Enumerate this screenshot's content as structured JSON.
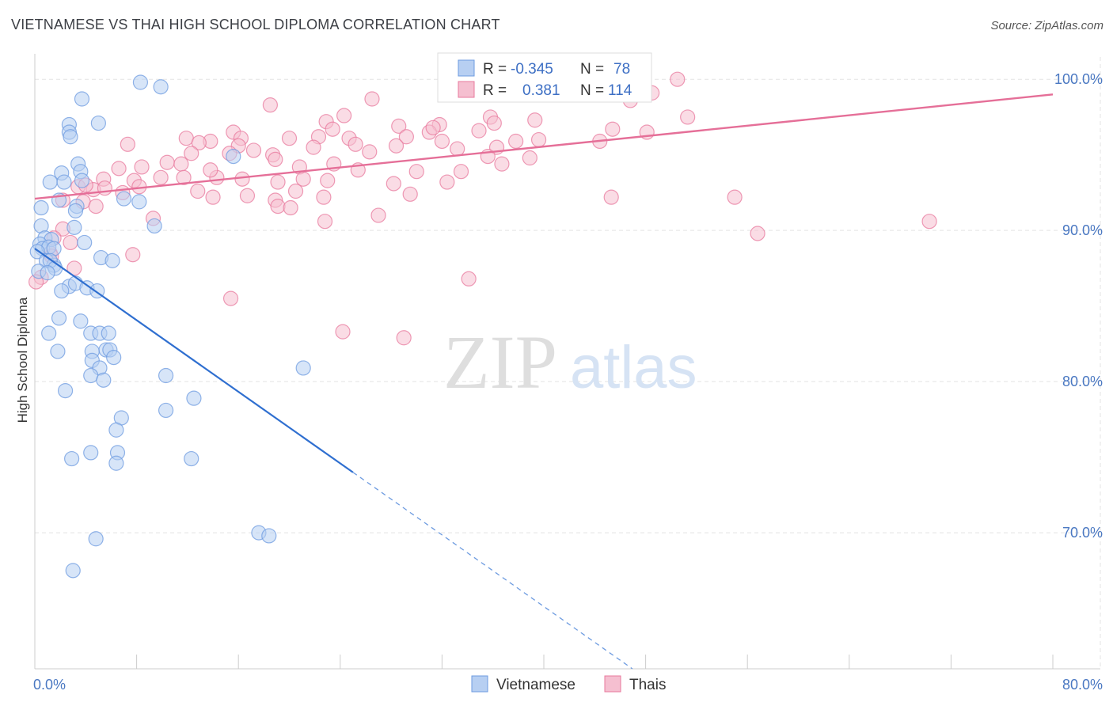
{
  "title": "VIETNAMESE VS THAI HIGH SCHOOL DIPLOMA CORRELATION CHART",
  "source": "Source: ZipAtlas.com",
  "watermark": {
    "zip": "ZIP",
    "atlas": "atlas"
  },
  "chart_data": {
    "type": "scatter",
    "ylabel": "High School Diploma",
    "xlim": [
      0,
      80
    ],
    "ylim": [
      61,
      102
    ],
    "y_ticks": [
      {
        "value": 100,
        "label": "100.0%"
      },
      {
        "value": 90,
        "label": "90.0%"
      },
      {
        "value": 80,
        "label": "80.0%"
      },
      {
        "value": 70,
        "label": "70.0%"
      }
    ],
    "x_ticks": [
      {
        "value": 0,
        "label": "0.0%"
      },
      {
        "value": 80,
        "label": "80.0%"
      }
    ],
    "grid": true,
    "legend": {
      "placement": "top-center",
      "rows": [
        {
          "r_label": "R =",
          "r_value": "-0.345",
          "n_label": "N =",
          "n_value": "78"
        },
        {
          "r_label": "R =",
          "r_value": "0.381",
          "n_label": "N =",
          "n_value": "114"
        }
      ]
    },
    "series": [
      {
        "name": "Vietnamese",
        "color": "#6d9be0",
        "fill": "#b7cff2",
        "trend": {
          "x0": 0,
          "y0": 88.8,
          "x1": 25,
          "y1": 74.0,
          "dash_to_x": 80
        },
        "points": [
          [
            8.3,
            99.8
          ],
          [
            9.9,
            99.5
          ],
          [
            3.7,
            98.7
          ],
          [
            2.7,
            97.0
          ],
          [
            5.0,
            97.1
          ],
          [
            2.7,
            96.5
          ],
          [
            2.8,
            96.2
          ],
          [
            15.6,
            94.9
          ],
          [
            3.4,
            94.4
          ],
          [
            2.1,
            93.8
          ],
          [
            3.6,
            93.9
          ],
          [
            1.2,
            93.2
          ],
          [
            3.7,
            93.3
          ],
          [
            2.3,
            93.2
          ],
          [
            7.0,
            92.1
          ],
          [
            8.2,
            91.9
          ],
          [
            3.3,
            91.6
          ],
          [
            0.5,
            91.5
          ],
          [
            3.2,
            91.3
          ],
          [
            1.9,
            92.0
          ],
          [
            0.5,
            90.3
          ],
          [
            3.1,
            90.2
          ],
          [
            9.4,
            90.3
          ],
          [
            0.8,
            89.5
          ],
          [
            1.3,
            89.4
          ],
          [
            0.4,
            89.1
          ],
          [
            0.6,
            88.8
          ],
          [
            1.1,
            88.9
          ],
          [
            0.2,
            88.6
          ],
          [
            1.5,
            88.8
          ],
          [
            3.9,
            89.2
          ],
          [
            5.2,
            88.2
          ],
          [
            6.1,
            88.0
          ],
          [
            0.9,
            88.0
          ],
          [
            1.5,
            87.7
          ],
          [
            1.2,
            88.0
          ],
          [
            1.6,
            87.5
          ],
          [
            0.3,
            87.3
          ],
          [
            1.0,
            87.2
          ],
          [
            2.7,
            86.3
          ],
          [
            3.2,
            86.5
          ],
          [
            4.1,
            86.2
          ],
          [
            4.9,
            86.0
          ],
          [
            2.1,
            86.0
          ],
          [
            1.9,
            84.2
          ],
          [
            3.6,
            84.0
          ],
          [
            1.1,
            83.2
          ],
          [
            4.4,
            83.2
          ],
          [
            5.1,
            83.2
          ],
          [
            5.8,
            83.2
          ],
          [
            1.8,
            82.0
          ],
          [
            4.5,
            82.0
          ],
          [
            5.6,
            82.1
          ],
          [
            5.9,
            82.1
          ],
          [
            6.2,
            81.6
          ],
          [
            4.5,
            81.4
          ],
          [
            5.1,
            80.9
          ],
          [
            21.1,
            80.9
          ],
          [
            4.4,
            80.4
          ],
          [
            5.4,
            80.1
          ],
          [
            10.3,
            80.4
          ],
          [
            2.4,
            79.4
          ],
          [
            12.5,
            78.9
          ],
          [
            10.3,
            78.1
          ],
          [
            6.8,
            77.6
          ],
          [
            6.4,
            76.8
          ],
          [
            4.4,
            75.3
          ],
          [
            6.5,
            75.3
          ],
          [
            2.9,
            74.9
          ],
          [
            12.3,
            74.9
          ],
          [
            6.4,
            74.6
          ],
          [
            17.6,
            70.0
          ],
          [
            18.4,
            69.8
          ],
          [
            4.8,
            69.6
          ],
          [
            3.0,
            67.5
          ]
        ]
      },
      {
        "name": "Thais",
        "color": "#e8799d",
        "fill": "#f5bfd0",
        "trend": {
          "x0": 0,
          "y0": 92.1,
          "x1": 80,
          "y1": 99.0
        },
        "points": [
          [
            50.5,
            100.0
          ],
          [
            33.6,
            99.2
          ],
          [
            48.5,
            99.1
          ],
          [
            26.5,
            98.7
          ],
          [
            46.8,
            98.6
          ],
          [
            18.5,
            98.3
          ],
          [
            24.3,
            97.6
          ],
          [
            35.8,
            97.5
          ],
          [
            51.3,
            97.5
          ],
          [
            22.9,
            97.2
          ],
          [
            28.6,
            96.9
          ],
          [
            31.8,
            97.0
          ],
          [
            36.1,
            97.1
          ],
          [
            39.3,
            97.3
          ],
          [
            15.6,
            96.5
          ],
          [
            23.4,
            96.7
          ],
          [
            34.9,
            96.6
          ],
          [
            31.0,
            96.5
          ],
          [
            48.1,
            96.5
          ],
          [
            11.9,
            96.1
          ],
          [
            13.8,
            95.9
          ],
          [
            16.2,
            96.1
          ],
          [
            20.0,
            96.1
          ],
          [
            22.3,
            96.2
          ],
          [
            24.7,
            96.1
          ],
          [
            29.2,
            96.2
          ],
          [
            32.0,
            95.9
          ],
          [
            37.8,
            95.9
          ],
          [
            39.6,
            96.0
          ],
          [
            44.4,
            95.9
          ],
          [
            7.3,
            95.7
          ],
          [
            12.9,
            95.8
          ],
          [
            16.0,
            95.6
          ],
          [
            21.9,
            95.5
          ],
          [
            25.2,
            95.7
          ],
          [
            28.4,
            95.6
          ],
          [
            33.2,
            95.4
          ],
          [
            36.3,
            95.5
          ],
          [
            17.2,
            95.3
          ],
          [
            12.3,
            95.1
          ],
          [
            15.3,
            95.1
          ],
          [
            18.7,
            95.0
          ],
          [
            26.3,
            95.2
          ],
          [
            35.6,
            94.9
          ],
          [
            38.9,
            94.8
          ],
          [
            6.6,
            94.1
          ],
          [
            8.4,
            94.2
          ],
          [
            10.4,
            94.5
          ],
          [
            11.5,
            94.4
          ],
          [
            18.9,
            94.7
          ],
          [
            20.8,
            94.2
          ],
          [
            23.5,
            94.4
          ],
          [
            25.4,
            94.0
          ],
          [
            30.0,
            93.9
          ],
          [
            33.5,
            93.9
          ],
          [
            36.7,
            94.4
          ],
          [
            5.4,
            93.4
          ],
          [
            7.8,
            93.3
          ],
          [
            9.9,
            93.5
          ],
          [
            11.7,
            93.5
          ],
          [
            14.3,
            93.5
          ],
          [
            16.3,
            93.4
          ],
          [
            19.1,
            93.2
          ],
          [
            21.1,
            93.4
          ],
          [
            23.0,
            93.3
          ],
          [
            28.2,
            93.1
          ],
          [
            32.4,
            93.2
          ],
          [
            3.4,
            92.9
          ],
          [
            4.6,
            92.7
          ],
          [
            5.5,
            92.8
          ],
          [
            6.9,
            92.5
          ],
          [
            8.2,
            92.9
          ],
          [
            12.8,
            92.6
          ],
          [
            14.0,
            92.2
          ],
          [
            16.7,
            92.3
          ],
          [
            18.9,
            92.0
          ],
          [
            22.7,
            92.2
          ],
          [
            29.5,
            92.4
          ],
          [
            2.2,
            92.0
          ],
          [
            3.8,
            91.9
          ],
          [
            4.8,
            91.6
          ],
          [
            19.1,
            91.6
          ],
          [
            20.1,
            91.5
          ],
          [
            45.3,
            92.2
          ],
          [
            55.0,
            92.2
          ],
          [
            4.0,
            93.0
          ],
          [
            9.3,
            90.8
          ],
          [
            22.8,
            90.6
          ],
          [
            27.0,
            91.0
          ],
          [
            56.8,
            89.8
          ],
          [
            70.3,
            90.6
          ],
          [
            2.2,
            90.1
          ],
          [
            1.5,
            89.5
          ],
          [
            2.8,
            89.2
          ],
          [
            1.2,
            88.5
          ],
          [
            7.7,
            88.4
          ],
          [
            3.1,
            87.5
          ],
          [
            0.5,
            86.9
          ],
          [
            34.1,
            86.8
          ],
          [
            15.4,
            85.5
          ],
          [
            24.2,
            83.3
          ],
          [
            29.0,
            82.9
          ],
          [
            0.1,
            86.6
          ],
          [
            1.3,
            88.3
          ],
          [
            45.4,
            96.7
          ],
          [
            13.8,
            94.0
          ],
          [
            31.3,
            96.8
          ],
          [
            20.5,
            92.6
          ]
        ]
      }
    ]
  }
}
